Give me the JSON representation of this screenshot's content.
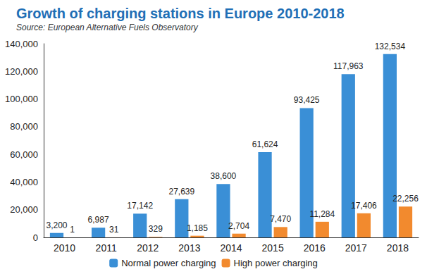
{
  "chart_data": {
    "type": "bar",
    "title": "Growth of charging stations in Europe 2010-2018",
    "subtitle": "Source: European Alternative Fuels Observatory",
    "categories": [
      "2010",
      "2011",
      "2012",
      "2013",
      "2014",
      "2015",
      "2016",
      "2017",
      "2018"
    ],
    "series": [
      {
        "name": "Normal power charging",
        "color": "#3a8fd6",
        "values": [
          3200,
          6987,
          17142,
          27639,
          38600,
          61624,
          93425,
          117963,
          132534
        ],
        "value_labels": [
          "3,200",
          "6,987",
          "17,142",
          "27,639",
          "38,600",
          "61,624",
          "93,425",
          "117,963",
          "132,534"
        ]
      },
      {
        "name": "High power charging",
        "color": "#f28a2e",
        "values": [
          1,
          31,
          329,
          1185,
          2704,
          7470,
          11284,
          17406,
          22256
        ],
        "value_labels": [
          "1",
          "31",
          "329",
          "1,185",
          "2,704",
          "7,470",
          "11,284",
          "17,406",
          "22,256"
        ]
      }
    ],
    "ylim": [
      0,
      140000
    ],
    "yticks": [
      0,
      {
        "value": 20000,
        "label": "20,000"
      },
      {
        "value": 40000,
        "label": "40,000"
      },
      {
        "value": 60000,
        "label": "60,000"
      },
      {
        "value": 80000,
        "label": "80,000"
      },
      {
        "value": 100000,
        "label": "100,000"
      },
      {
        "value": 120000,
        "label": "120,000"
      },
      {
        "value": 140000,
        "label": "140,000"
      }
    ],
    "grid": false,
    "legend": "bottom",
    "data_labels": true
  }
}
